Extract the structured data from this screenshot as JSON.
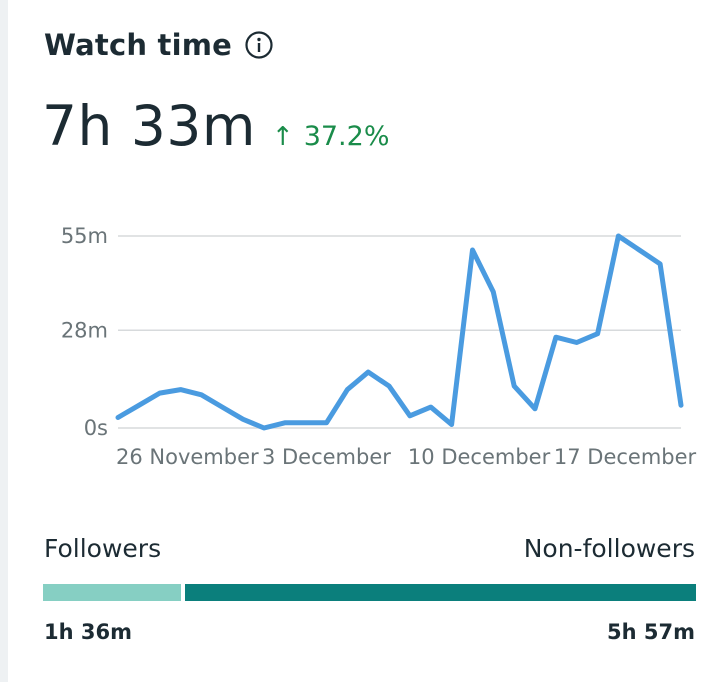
{
  "header": {
    "title": "Watch time",
    "icon": "info-icon",
    "total": "7h 33m",
    "change_arrow": "↑",
    "change": "37.2%",
    "change_color": "#1a8c4a"
  },
  "chart_data": {
    "type": "line",
    "title": "Watch time",
    "xlabel": "",
    "ylabel": "",
    "y_ticks": [
      {
        "value": 0,
        "label": "0s"
      },
      {
        "value": 28,
        "label": "28m"
      },
      {
        "value": 55,
        "label": "55m"
      }
    ],
    "ylim": [
      0,
      55
    ],
    "grid": true,
    "line_color": "#4a9be0",
    "x_labels": [
      {
        "index": 0,
        "label": "26 November"
      },
      {
        "index": 7,
        "label": "3 December"
      },
      {
        "index": 14,
        "label": "10 December"
      },
      {
        "index": 21,
        "label": "17 December"
      }
    ],
    "series": [
      {
        "name": "Watch time (minutes)",
        "x": [
          0,
          1,
          2,
          3,
          4,
          5,
          6,
          7,
          8,
          9,
          10,
          11,
          12,
          13,
          14,
          15,
          16,
          17,
          18,
          19,
          20,
          21,
          22,
          23,
          24,
          25,
          26,
          27
        ],
        "values": [
          3,
          6.5,
          10,
          11,
          9.5,
          6,
          2.5,
          0,
          1.5,
          1.5,
          1.5,
          11,
          16,
          12,
          3.5,
          6,
          1,
          51,
          39,
          12,
          5.5,
          26,
          24.5,
          27,
          55,
          51,
          47,
          6.5
        ]
      }
    ]
  },
  "audience": {
    "followers_label": "Followers",
    "nonfollowers_label": "Non-followers",
    "followers_value": "1h 36m",
    "nonfollowers_value": "5h 57m",
    "followers_share": 0.212,
    "followers_color": "#86cfc3",
    "nonfollowers_color": "#0b7f7c"
  }
}
